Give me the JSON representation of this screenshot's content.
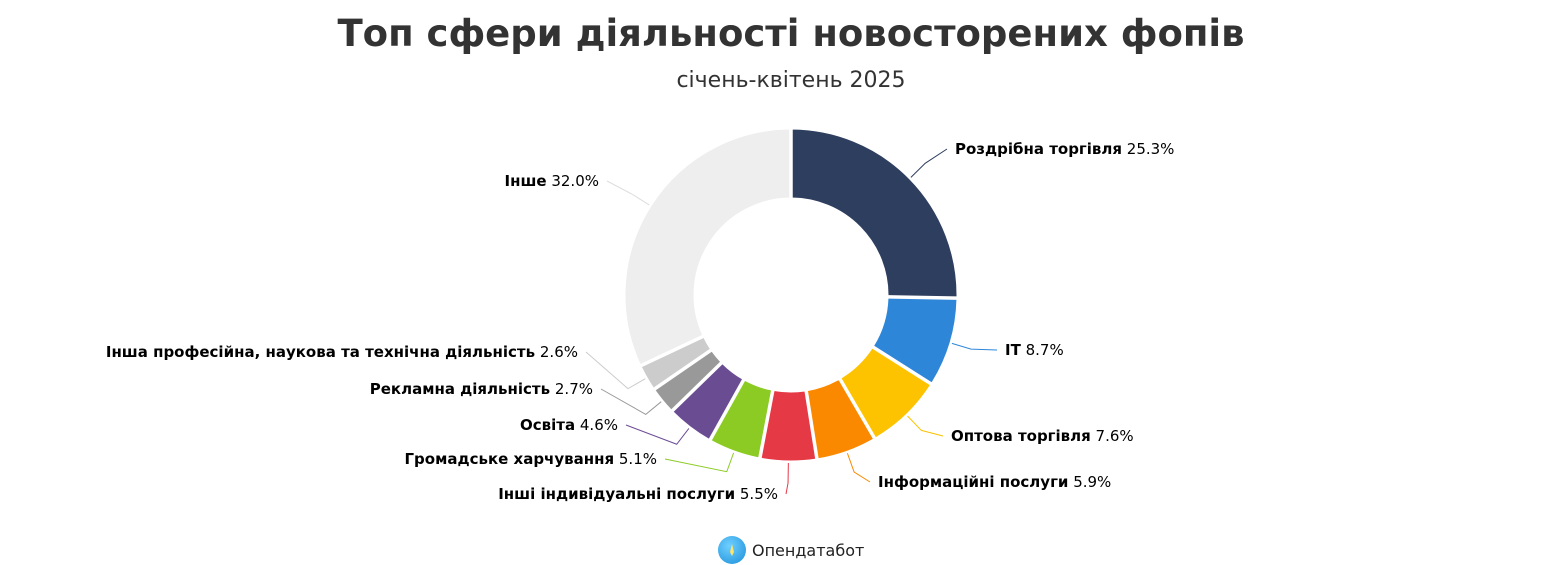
{
  "chart_data": {
    "type": "pie",
    "donut": true,
    "title": "Топ сфери діяльності новосторених фопів",
    "subtitle": "січень-квітень 2025",
    "slices": [
      {
        "label": "Роздрібна торгівля",
        "value": 25.3,
        "value_label": "25.3%",
        "color": "#2e3e5f"
      },
      {
        "label": "IT",
        "value": 8.7,
        "value_label": "8.7%",
        "color": "#2e86d9"
      },
      {
        "label": "Оптова торгівля",
        "value": 7.6,
        "value_label": "7.6%",
        "color": "#fdc200"
      },
      {
        "label": "Інформаційні послуги",
        "value": 5.9,
        "value_label": "5.9%",
        "color": "#fa8900"
      },
      {
        "label": "Інші індивідуальні послуги",
        "value": 5.5,
        "value_label": "5.5%",
        "color": "#e63946"
      },
      {
        "label": "Громадське харчування",
        "value": 5.1,
        "value_label": "5.1%",
        "color": "#8ccb24"
      },
      {
        "label": "Освіта",
        "value": 4.6,
        "value_label": "4.6%",
        "color": "#6a4c93"
      },
      {
        "label": "Рекламна діяльність",
        "value": 2.7,
        "value_label": "2.7%",
        "color": "#999999"
      },
      {
        "label": "Інша професійна, наукова та технічна діяльність",
        "value": 2.6,
        "value_label": "2.6%",
        "color": "#cccccc"
      },
      {
        "label": "Інше",
        "value": 32.0,
        "value_label": "32.0%",
        "color": "#eeeeee"
      }
    ]
  },
  "brand": {
    "name": "Опендатабот"
  }
}
